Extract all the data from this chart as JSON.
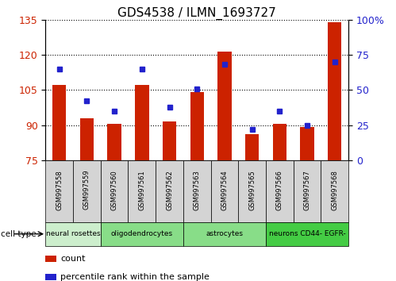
{
  "title": "GDS4538 / ILMN_1693727",
  "samples": [
    "GSM997558",
    "GSM997559",
    "GSM997560",
    "GSM997561",
    "GSM997562",
    "GSM997563",
    "GSM997564",
    "GSM997565",
    "GSM997566",
    "GSM997567",
    "GSM997568"
  ],
  "count_values": [
    107,
    93,
    90.5,
    107,
    91.5,
    104,
    121.5,
    86,
    90.5,
    89,
    134
  ],
  "percentile_values": [
    65,
    42,
    35,
    65,
    38,
    51,
    68,
    22,
    35,
    25,
    70
  ],
  "ylim_left": [
    75,
    135
  ],
  "ylim_right": [
    0,
    100
  ],
  "yticks_left": [
    75,
    90,
    105,
    120,
    135
  ],
  "yticks_right": [
    0,
    25,
    50,
    75,
    100
  ],
  "bar_color": "#cc2200",
  "dot_color": "#2222cc",
  "bar_width": 0.5,
  "cell_type_groups": [
    {
      "label": "neural rosettes",
      "start": 0,
      "end": 2,
      "color": "#cceecc"
    },
    {
      "label": "oligodendrocytes",
      "start": 2,
      "end": 5,
      "color": "#88dd88"
    },
    {
      "label": "astrocytes",
      "start": 5,
      "end": 8,
      "color": "#88dd88"
    },
    {
      "label": "neurons CD44- EGFR-",
      "start": 8,
      "end": 11,
      "color": "#44cc44"
    }
  ],
  "legend_count_color": "#cc2200",
  "legend_pct_color": "#2222cc",
  "tick_label_color_left": "#cc2200",
  "tick_label_color_right": "#2222cc",
  "sample_box_color": "#d4d4d4",
  "xlabel_fontsize": 6.0,
  "bar_label_fontsize": 9,
  "title_fontsize": 11
}
